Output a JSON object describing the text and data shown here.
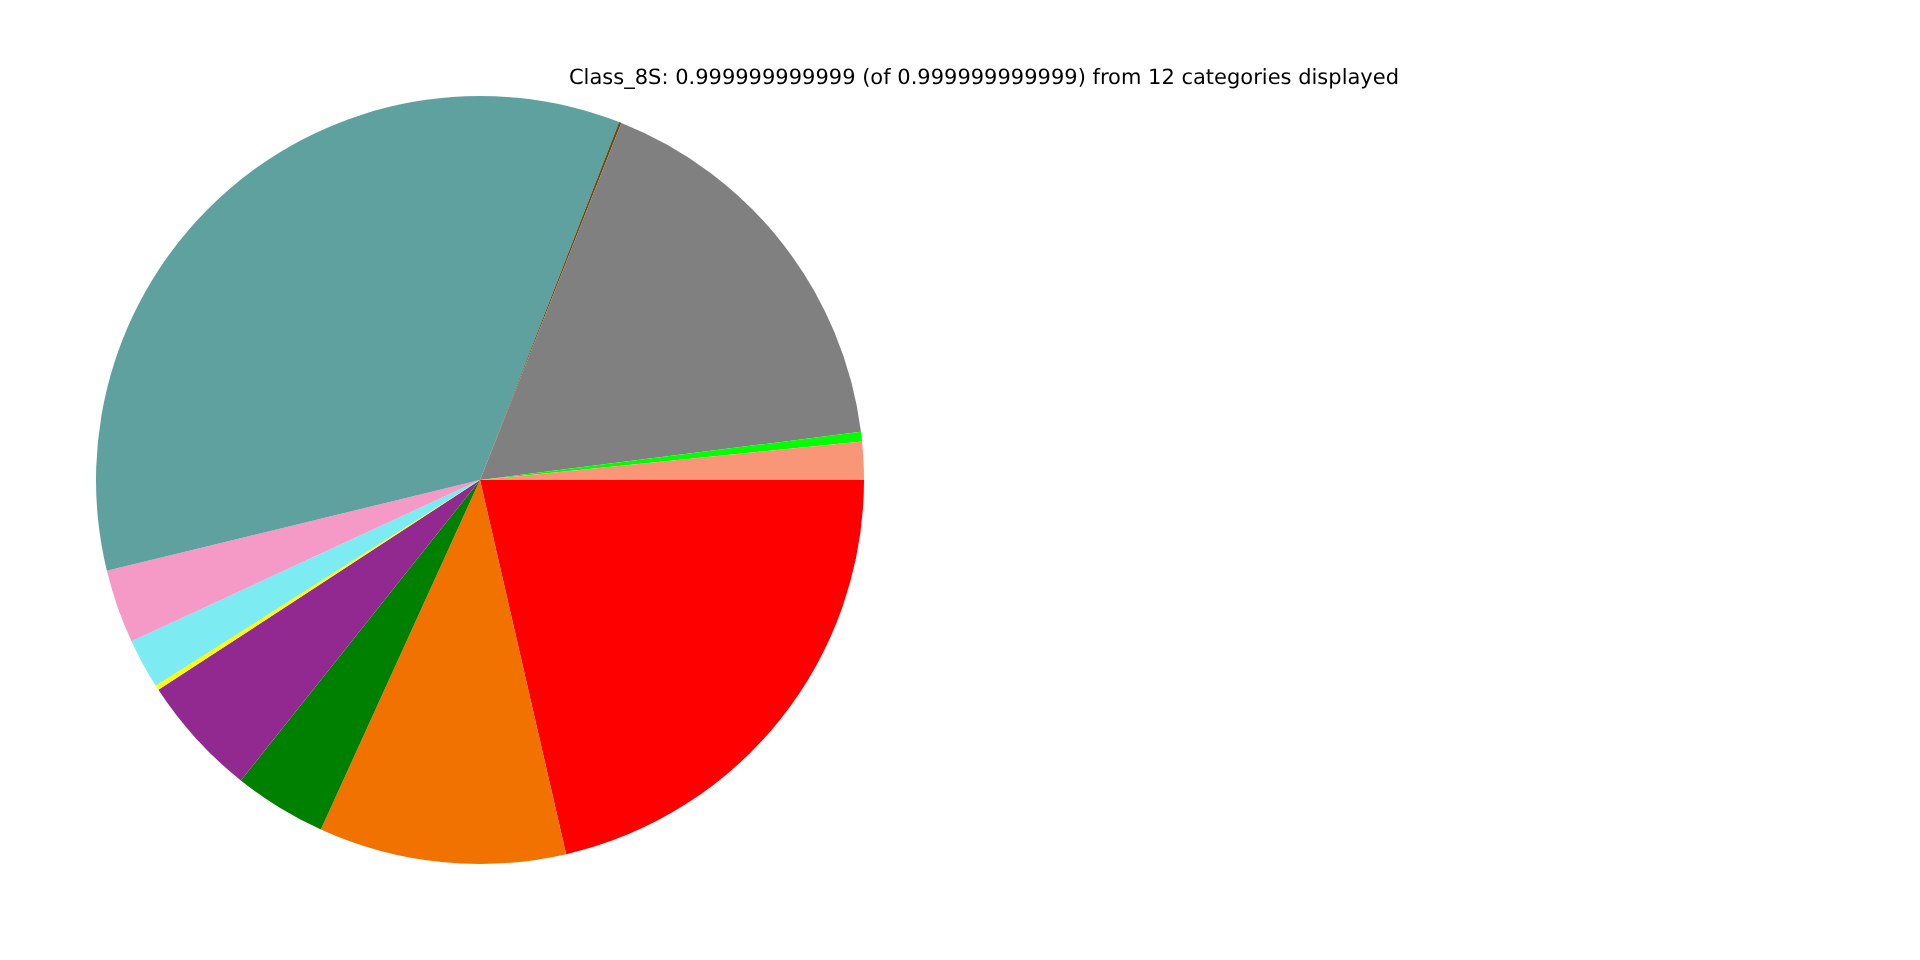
{
  "chart_data": {
    "type": "pie",
    "title": "Class_8S: 0.999999999999 (of 0.999999999999) from 12 categories displayed",
    "categories": [
      null,
      null,
      null,
      null,
      null,
      null,
      null,
      null,
      null,
      null,
      null,
      null
    ],
    "values": [
      21.4,
      10.4,
      3.9,
      5.1,
      0.2,
      2.1,
      3.1,
      34.7,
      0.1,
      17.0,
      0.4,
      1.6
    ],
    "colors": [
      "#ff0000",
      "#f27200",
      "#008000",
      "#912990",
      "#ffff00",
      "#7debf2",
      "#f59ac6",
      "#5fa19e",
      "#6b4a12",
      "#808080",
      "#00ff00",
      "#fa9678"
    ],
    "legend": false
  }
}
